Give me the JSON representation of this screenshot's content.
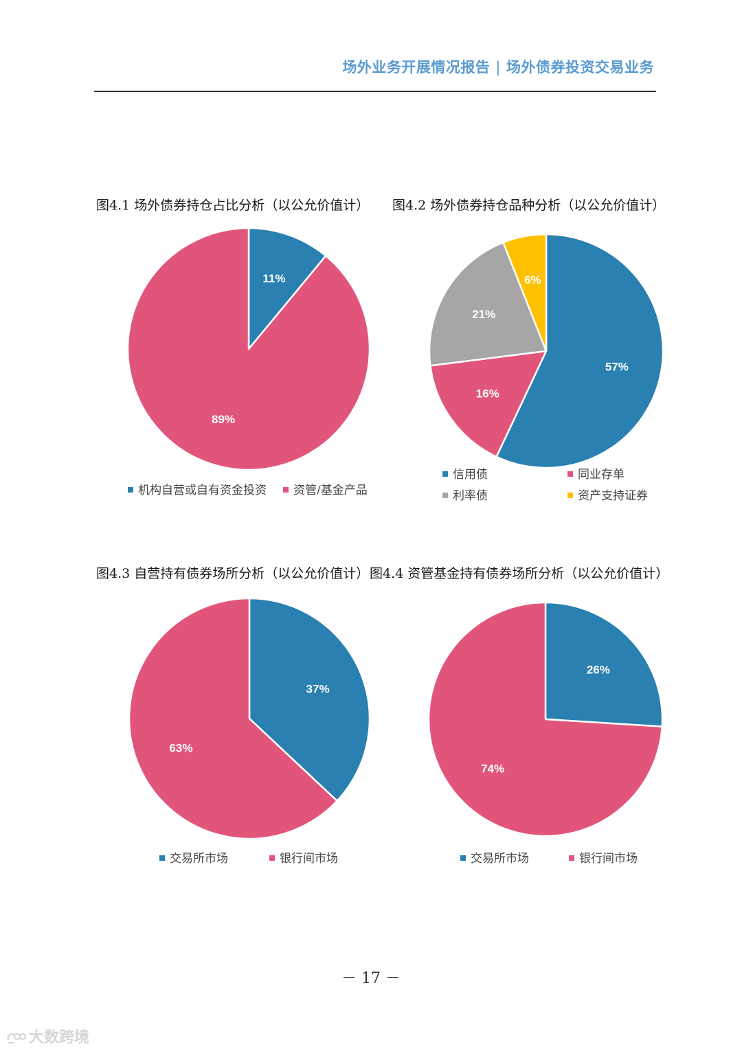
{
  "header": {
    "report_title": "场外业务开展情况报告",
    "separator": "|",
    "section_title": "场外债券投资交易业务"
  },
  "colors": {
    "blue": "#2a80b0",
    "pink": "#e2557a",
    "gray": "#a6a6a6",
    "yellow": "#ffc000",
    "header_accent": "#5b9bd1"
  },
  "chart_data": [
    {
      "type": "pie",
      "title": "图4.1 场外债券持仓占比分析（以公允价值计）",
      "categories": [
        "机构自营或自有资金投资",
        "资管/基金产品"
      ],
      "values": [
        11,
        89
      ],
      "labels": [
        "11%",
        "89%"
      ],
      "colors": [
        "#2a80b0",
        "#e2557a"
      ],
      "legend": "bottom"
    },
    {
      "type": "pie",
      "title": "图4.2 场外债券持仓品种分析（以公允价值计）",
      "categories": [
        "信用债",
        "同业存单",
        "利率债",
        "资产支持证券"
      ],
      "values": [
        57,
        16,
        21,
        6
      ],
      "labels": [
        "57%",
        "16%",
        "21%",
        "6%"
      ],
      "colors": [
        "#2a80b0",
        "#e2557a",
        "#a6a6a6",
        "#ffc000"
      ],
      "legend": "bottom"
    },
    {
      "type": "pie",
      "title": "图4.3 自营持有债券场所分析（以公允价值计）",
      "categories": [
        "交易所市场",
        "银行间市场"
      ],
      "values": [
        37,
        63
      ],
      "labels": [
        "37%",
        "63%"
      ],
      "colors": [
        "#2a80b0",
        "#e2557a"
      ],
      "legend": "bottom"
    },
    {
      "type": "pie",
      "title": "图4.4 资管基金持有债券场所分析（以公允价值计）",
      "categories": [
        "交易所市场",
        "银行间市场"
      ],
      "values": [
        26,
        74
      ],
      "labels": [
        "26%",
        "74%"
      ],
      "colors": [
        "#2a80b0",
        "#e2557a"
      ],
      "legend": "bottom"
    }
  ],
  "footer": {
    "page_number": "－ 17 －"
  },
  "watermark": {
    "text": "大数跨境"
  }
}
